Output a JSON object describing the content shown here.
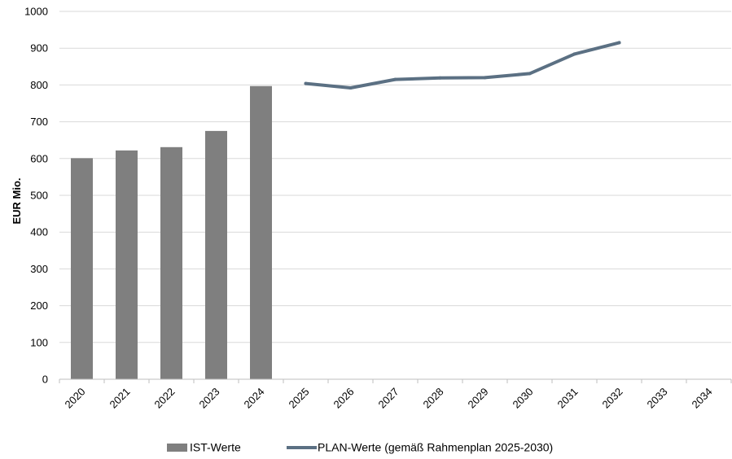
{
  "chart_data": {
    "type": "bar",
    "title": "",
    "xlabel": "",
    "ylabel": "EUR Mio.",
    "ylim": [
      0,
      1000
    ],
    "yticks": [
      0,
      100,
      200,
      300,
      400,
      500,
      600,
      700,
      800,
      900,
      1000
    ],
    "grid": true,
    "legend_position": "bottom",
    "categories": [
      "2020",
      "2021",
      "2022",
      "2023",
      "2024",
      "2025",
      "2026",
      "2027",
      "2028",
      "2029",
      "2030",
      "2031",
      "2032",
      "2033",
      "2034"
    ],
    "series": [
      {
        "name": "IST-Werte",
        "type": "bar",
        "color": "#7f7f7f",
        "values": [
          601,
          622,
          631,
          675,
          797,
          null,
          null,
          null,
          null,
          null,
          null,
          null,
          null,
          null,
          null
        ]
      },
      {
        "name": "PLAN-Werte (gemäß Rahmenplan 2025-2030)",
        "type": "line",
        "color": "#5b7083",
        "values": [
          null,
          null,
          null,
          null,
          null,
          804,
          792,
          815,
          819,
          820,
          831,
          884,
          915,
          null,
          null
        ]
      }
    ]
  }
}
